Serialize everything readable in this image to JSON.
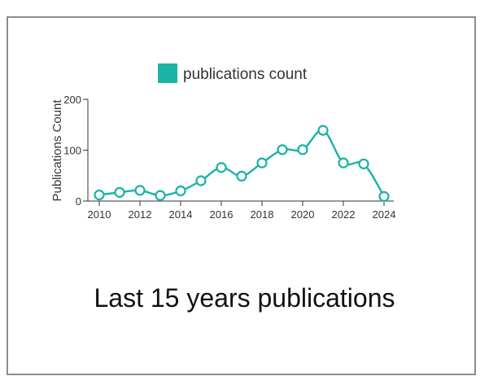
{
  "caption": "Last 15 years publications",
  "chart_data": {
    "type": "line",
    "title": "",
    "legend": {
      "label": "publications count",
      "placement": "top"
    },
    "xlabel": "",
    "ylabel": "Publications Count",
    "x": [
      2010,
      2011,
      2012,
      2013,
      2014,
      2015,
      2016,
      2017,
      2018,
      2019,
      2020,
      2021,
      2022,
      2023,
      2024
    ],
    "xticks": [
      "2010",
      "2012",
      "2014",
      "2016",
      "2018",
      "2020",
      "2022",
      "2024"
    ],
    "yticks": [
      "0",
      "100",
      "200"
    ],
    "xlim": [
      2010,
      2024
    ],
    "ylim": [
      0,
      200
    ],
    "grid": false,
    "series": [
      {
        "name": "publications count",
        "values": [
          12,
          17,
          21,
          11,
          20,
          40,
          66,
          49,
          75,
          101,
          101,
          139,
          75,
          73,
          9
        ]
      }
    ],
    "colors": {
      "series": "#1ab3a6",
      "axis": "#333333"
    }
  }
}
